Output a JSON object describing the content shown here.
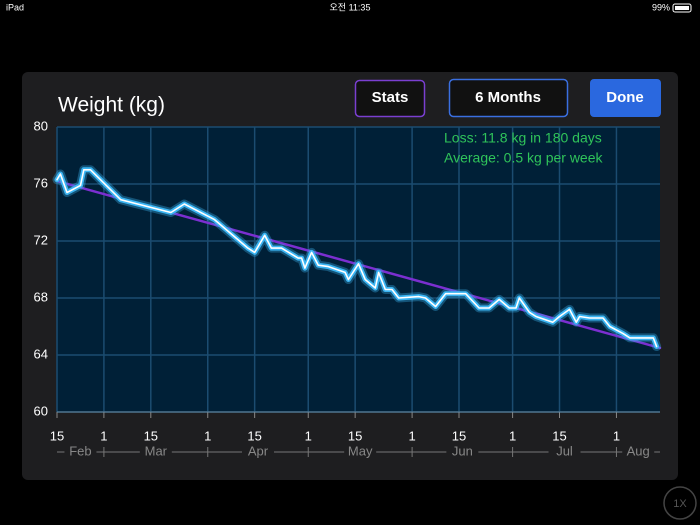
{
  "status_bar": {
    "device": "iPad",
    "time": "오전 11:35",
    "battery": "99%"
  },
  "buttons": {
    "stats": "Stats",
    "range": "6 Months",
    "done": "Done",
    "zoom": "1X"
  },
  "chart_data": {
    "type": "line",
    "title": "Weight (kg)",
    "annotations": [
      "Loss: 11.8 kg in 180 days",
      "Average: 0.5 kg per week"
    ],
    "series": [
      {
        "color": "#7b2fd0",
        "x": [
          "02-15",
          "08-14"
        ],
        "values": [
          76.2,
          64.5
        ]
      },
      {
        "color": "#3ab4f2",
        "x": [
          "02-15",
          "02-16",
          "02-18",
          "02-22",
          "02-23",
          "02-25",
          "03-06",
          "03-21",
          "03-25",
          "04-03",
          "04-13",
          "04-15",
          "04-18",
          "04-20",
          "04-23",
          "04-28",
          "04-29",
          "04-30",
          "05-02",
          "05-04",
          "05-07",
          "05-12",
          "05-13",
          "05-16",
          "05-18",
          "05-21",
          "05-22",
          "05-24",
          "05-26",
          "05-28",
          "06-03",
          "06-05",
          "06-08",
          "06-11",
          "06-17",
          "06-21",
          "06-24",
          "06-27",
          "06-30",
          "07-02",
          "07-03",
          "07-06",
          "07-08",
          "07-13",
          "07-15",
          "07-18",
          "07-20",
          "07-21",
          "07-24",
          "07-28",
          "07-30",
          "08-03",
          "08-05",
          "08-12",
          "08-13"
        ],
        "values": [
          76.3,
          76.7,
          75.4,
          75.9,
          77.0,
          77.0,
          74.9,
          74.0,
          74.6,
          73.5,
          71.5,
          71.2,
          72.4,
          71.5,
          71.5,
          70.8,
          70.8,
          70.1,
          71.2,
          70.3,
          70.2,
          69.8,
          69.3,
          70.4,
          69.3,
          68.7,
          69.8,
          68.6,
          68.6,
          68.0,
          68.1,
          68.0,
          67.4,
          68.3,
          68.3,
          67.3,
          67.3,
          67.9,
          67.3,
          67.3,
          68.0,
          67.0,
          66.7,
          66.3,
          66.7,
          67.2,
          66.3,
          66.7,
          66.6,
          66.6,
          66.0,
          65.5,
          65.2,
          65.2,
          64.6
        ]
      }
    ],
    "ylim": [
      60,
      80
    ],
    "yticks": [
      60,
      64,
      68,
      72,
      76,
      80
    ],
    "xlim": [
      "02-15",
      "08-14"
    ],
    "xticks": [
      {
        "value": "02-15",
        "label": "15"
      },
      {
        "value": "03-01",
        "label": "1"
      },
      {
        "value": "03-15",
        "label": "15"
      },
      {
        "value": "04-01",
        "label": "1"
      },
      {
        "value": "04-15",
        "label": "15"
      },
      {
        "value": "05-01",
        "label": "1"
      },
      {
        "value": "05-15",
        "label": "15"
      },
      {
        "value": "06-01",
        "label": "1"
      },
      {
        "value": "06-15",
        "label": "15"
      },
      {
        "value": "07-01",
        "label": "1"
      },
      {
        "value": "07-15",
        "label": "15"
      },
      {
        "value": "08-01",
        "label": "1"
      }
    ],
    "months": [
      "Feb",
      "Mar",
      "Apr",
      "May",
      "Jun",
      "Jul",
      "Aug"
    ],
    "grid": true
  }
}
